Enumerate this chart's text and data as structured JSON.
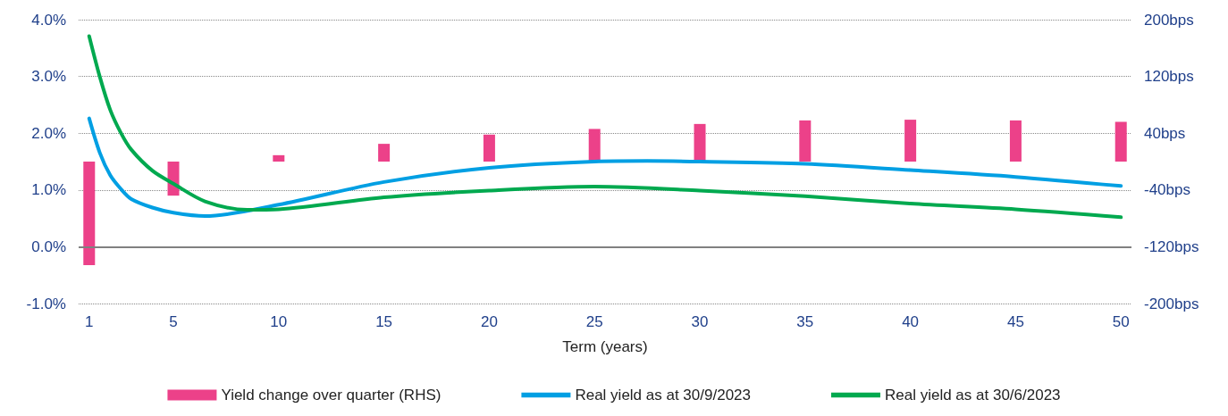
{
  "chart_data": {
    "type": "line",
    "xlabel": "Term (years)",
    "xlim": [
      0.5,
      50.5
    ],
    "xticks": [
      1,
      5,
      10,
      15,
      20,
      25,
      30,
      35,
      40,
      45,
      50
    ],
    "ylim": [
      -1,
      4
    ],
    "yticks": [
      {
        "value": -1,
        "label": "-1.0%"
      },
      {
        "value": 0,
        "label": "0.0%"
      },
      {
        "value": 1,
        "label": "1.0%"
      },
      {
        "value": 2,
        "label": "2.0%"
      },
      {
        "value": 3,
        "label": "3.0%"
      },
      {
        "value": 4,
        "label": "4.0%"
      }
    ],
    "y2lim": [
      -200,
      200
    ],
    "y2ticks": [
      {
        "value": -200,
        "label": "-200bps"
      },
      {
        "value": -120,
        "label": "-120bps"
      },
      {
        "value": -40,
        "label": "-40bps"
      },
      {
        "value": 40,
        "label": "40bps"
      },
      {
        "value": 120,
        "label": "120bps"
      },
      {
        "value": 200,
        "label": "200bps"
      }
    ],
    "grid": "y",
    "legend": "bottom",
    "ref_lines": [
      {
        "axis": "y",
        "value": 0,
        "color": "#808080"
      }
    ],
    "series": [
      {
        "name": "Yield change over quarter (RHS)",
        "type": "bar",
        "axis": "y2",
        "color": "#ec4189",
        "x": [
          1,
          5,
          10,
          15,
          20,
          25,
          30,
          35,
          40,
          45,
          50
        ],
        "values": [
          -146,
          -48,
          9,
          25,
          38,
          46,
          53,
          58,
          59,
          58,
          56
        ]
      },
      {
        "name": "Real yield as at 30/9/2023",
        "color": "#009fe3",
        "x": [
          1,
          1.5,
          2,
          2.5,
          3,
          4,
          5,
          6.5,
          10,
          15,
          20,
          25,
          27.5,
          30,
          35,
          40,
          45,
          50
        ],
        "values": [
          2.26,
          1.66,
          1.26,
          1.02,
          0.84,
          0.69,
          0.6,
          0.54,
          0.74,
          1.14,
          1.39,
          1.5,
          1.51,
          1.5,
          1.46,
          1.35,
          1.23,
          1.07
        ]
      },
      {
        "name": "Real yield as at 30/6/2023",
        "color": "#00a94f",
        "x": [
          1,
          1.5,
          2,
          2.5,
          3,
          4,
          5,
          6.5,
          8.5,
          10,
          15,
          20,
          25,
          30,
          35,
          40,
          45,
          50
        ],
        "values": [
          3.71,
          3.0,
          2.41,
          2.01,
          1.71,
          1.34,
          1.11,
          0.8,
          0.65,
          0.66,
          0.87,
          0.99,
          1.06,
          0.99,
          0.89,
          0.76,
          0.66,
          0.52
        ]
      }
    ]
  }
}
